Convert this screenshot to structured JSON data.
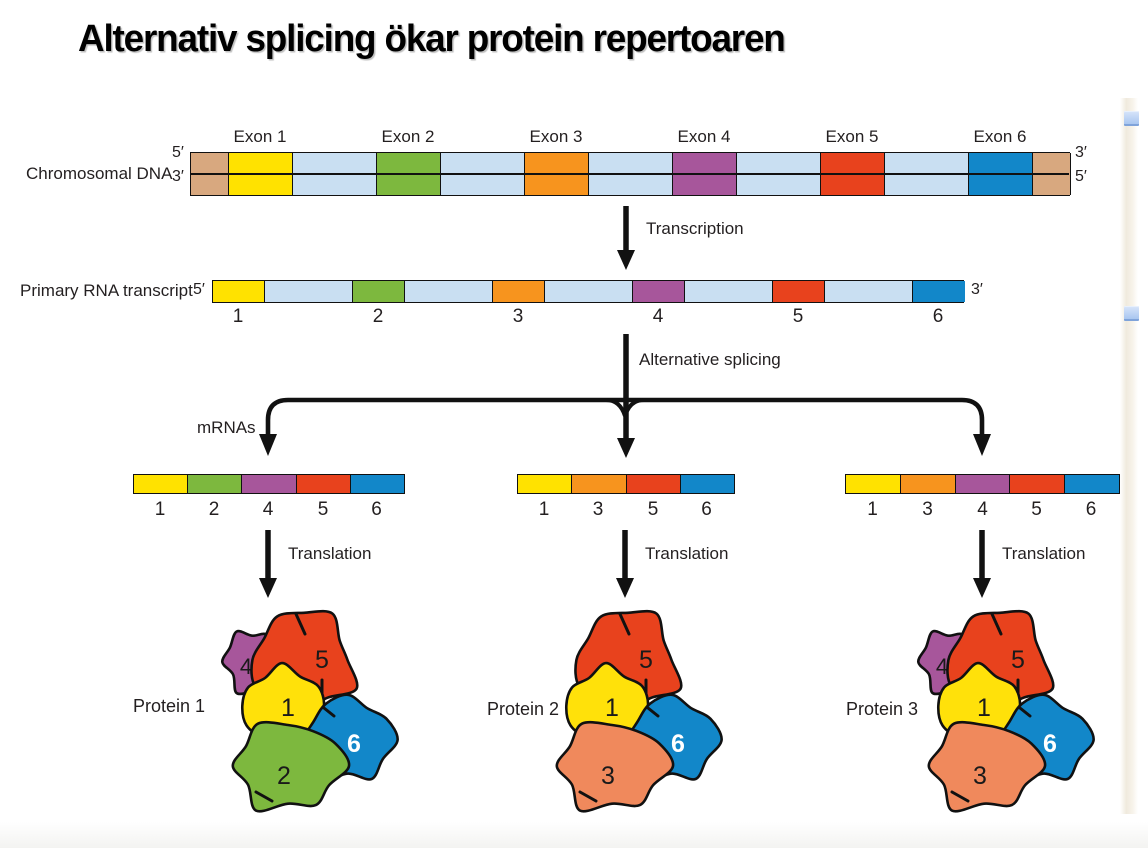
{
  "title": "Alternativ splicing ökar protein repertoaren",
  "figure": {
    "dna": {
      "label": "Chromosomal DNA",
      "strand_labels": {
        "left_top": "5′",
        "left_bottom": "3′",
        "right_top": "3′",
        "right_bottom": "5′"
      },
      "exons": [
        {
          "n": "1",
          "label": "Exon 1",
          "color": "#ffe200"
        },
        {
          "n": "2",
          "label": "Exon 2",
          "color": "#7db83e"
        },
        {
          "n": "3",
          "label": "Exon 3",
          "color": "#f7941e"
        },
        {
          "n": "4",
          "label": "Exon 4",
          "color": "#a7569b"
        },
        {
          "n": "5",
          "label": "Exon 5",
          "color": "#e8421d"
        },
        {
          "n": "6",
          "label": "Exon 6",
          "color": "#1287c9"
        }
      ],
      "intron_color": "#c9dff2",
      "cap_color": "#d8a87f"
    },
    "transcription_label": "Transcription",
    "rna": {
      "label": "Primary RNA transcript",
      "left": "5′",
      "right": "3′"
    },
    "splicing_label": "Alternative splicing",
    "mrnas_label": "mRNAs",
    "translation_label": "Translation",
    "mrnas": [
      {
        "exons": [
          "1",
          "2",
          "4",
          "5",
          "6"
        ]
      },
      {
        "exons": [
          "1",
          "3",
          "5",
          "6"
        ]
      },
      {
        "exons": [
          "1",
          "3",
          "4",
          "5",
          "6"
        ]
      }
    ],
    "proteins": [
      {
        "label": "Protein 1",
        "subunits": [
          "4",
          "5",
          "1",
          "6",
          "2"
        ]
      },
      {
        "label": "Protein 2",
        "subunits": [
          "5",
          "1",
          "6",
          "3"
        ]
      },
      {
        "label": "Protein 3",
        "subunits": [
          "4",
          "5",
          "1",
          "6",
          "3"
        ]
      }
    ],
    "protein_subunit_colors": {
      "1": "#ffe10a",
      "2": "#7db83e",
      "3": "#f0895c",
      "4": "#a7569b",
      "5": "#e8421d",
      "6": "#1287c9"
    },
    "line_color": "#111111"
  },
  "artifacts": {
    "edge_marker_color": "#a9c6f0"
  }
}
